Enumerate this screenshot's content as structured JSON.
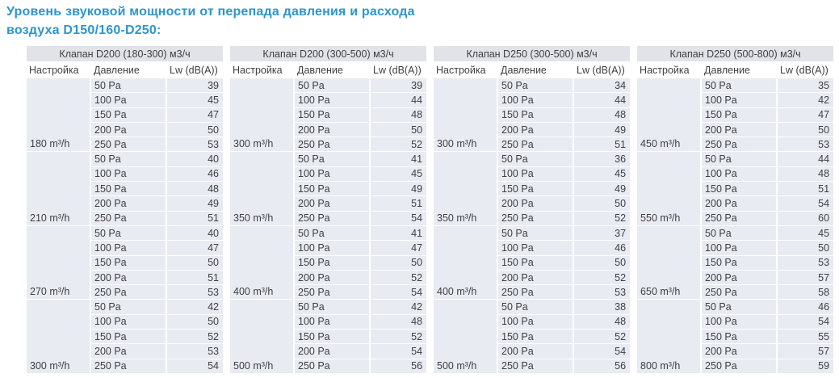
{
  "title": {
    "line1": "Уровень звуковой мощности от перепада давления и расхода",
    "line2": "воздуха D150/160-D250:"
  },
  "colors": {
    "title_accent": "#2e95cc",
    "table_header_bg": "#e2e3e9",
    "table_row_bg": "#e9ebf3",
    "text": "#3f3f3f",
    "separator": "#ffffff"
  },
  "tables": [
    {
      "header": "Клапан D200 (180-300) м3/ч",
      "columns": [
        "Настройка",
        "Давление",
        "Lw (dB(A))"
      ],
      "groups": [
        {
          "setting": "180 m³/h",
          "rows": [
            {
              "pressure": "50 Pa",
              "lw": 39
            },
            {
              "pressure": "100 Pa",
              "lw": 45
            },
            {
              "pressure": "150 Pa",
              "lw": 47
            },
            {
              "pressure": "200 Pa",
              "lw": 50
            },
            {
              "pressure": "250 Pa",
              "lw": 53
            }
          ]
        },
        {
          "setting": "210 m³/h",
          "rows": [
            {
              "pressure": "50 Pa",
              "lw": 40
            },
            {
              "pressure": "100 Pa",
              "lw": 46
            },
            {
              "pressure": "150 Pa",
              "lw": 48
            },
            {
              "pressure": "200 Pa",
              "lw": 49
            },
            {
              "pressure": "250 Pa",
              "lw": 51
            }
          ]
        },
        {
          "setting": "270 m³/h",
          "rows": [
            {
              "pressure": "50 Pa",
              "lw": 40
            },
            {
              "pressure": "100 Pa",
              "lw": 47
            },
            {
              "pressure": "150 Pa",
              "lw": 50
            },
            {
              "pressure": "200 Pa",
              "lw": 51
            },
            {
              "pressure": "250 Pa",
              "lw": 53
            }
          ]
        },
        {
          "setting": "300 m³/h",
          "rows": [
            {
              "pressure": "50 Pa",
              "lw": 42
            },
            {
              "pressure": "100 Pa",
              "lw": 50
            },
            {
              "pressure": "150 Pa",
              "lw": 52
            },
            {
              "pressure": "200 Pa",
              "lw": 53
            },
            {
              "pressure": "250 Pa",
              "lw": 54
            }
          ]
        }
      ]
    },
    {
      "header": "Клапан D200 (300-500) м3/ч",
      "columns": [
        "Настройка",
        "Давление",
        "Lw (dB(A))"
      ],
      "groups": [
        {
          "setting": "300 m³/h",
          "rows": [
            {
              "pressure": "50 Pa",
              "lw": 39
            },
            {
              "pressure": "100 Pa",
              "lw": 44
            },
            {
              "pressure": "150 Pa",
              "lw": 48
            },
            {
              "pressure": "200 Pa",
              "lw": 50
            },
            {
              "pressure": "250 Pa",
              "lw": 52
            }
          ]
        },
        {
          "setting": "350 m³/h",
          "rows": [
            {
              "pressure": "50 Pa",
              "lw": 41
            },
            {
              "pressure": "100 Pa",
              "lw": 45
            },
            {
              "pressure": "150 Pa",
              "lw": 49
            },
            {
              "pressure": "200 Pa",
              "lw": 51
            },
            {
              "pressure": "250 Pa",
              "lw": 54
            }
          ]
        },
        {
          "setting": "400 m³/h",
          "rows": [
            {
              "pressure": "50 Pa",
              "lw": 41
            },
            {
              "pressure": "100 Pa",
              "lw": 47
            },
            {
              "pressure": "150 Pa",
              "lw": 50
            },
            {
              "pressure": "200 Pa",
              "lw": 52
            },
            {
              "pressure": "250 Pa",
              "lw": 54
            }
          ]
        },
        {
          "setting": "500 m³/h",
          "rows": [
            {
              "pressure": "50 Pa",
              "lw": 42
            },
            {
              "pressure": "100 Pa",
              "lw": 48
            },
            {
              "pressure": "150 Pa",
              "lw": 52
            },
            {
              "pressure": "200 Pa",
              "lw": 54
            },
            {
              "pressure": "250 Pa",
              "lw": 56
            }
          ]
        }
      ]
    },
    {
      "header": "Клапан D250 (300-500) м3/ч",
      "columns": [
        "Настройка",
        "Давление",
        "Lw (dB(A))"
      ],
      "groups": [
        {
          "setting": "300 m³/h",
          "rows": [
            {
              "pressure": "50 Pa",
              "lw": 34
            },
            {
              "pressure": "100 Pa",
              "lw": 44
            },
            {
              "pressure": "150 Pa",
              "lw": 48
            },
            {
              "pressure": "200 Pa",
              "lw": 49
            },
            {
              "pressure": "250 Pa",
              "lw": 51
            }
          ]
        },
        {
          "setting": "350 m³/h",
          "rows": [
            {
              "pressure": "50 Pa",
              "lw": 36
            },
            {
              "pressure": "100 Pa",
              "lw": 45
            },
            {
              "pressure": "150 Pa",
              "lw": 49
            },
            {
              "pressure": "200 Pa",
              "lw": 50
            },
            {
              "pressure": "250 Pa",
              "lw": 52
            }
          ]
        },
        {
          "setting": "400 m³/h",
          "rows": [
            {
              "pressure": "50 Pa",
              "lw": 37
            },
            {
              "pressure": "100 Pa",
              "lw": 46
            },
            {
              "pressure": "150 Pa",
              "lw": 50
            },
            {
              "pressure": "200 Pa",
              "lw": 52
            },
            {
              "pressure": "250 Pa",
              "lw": 53
            }
          ]
        },
        {
          "setting": "500 m³/h",
          "rows": [
            {
              "pressure": "50 Pa",
              "lw": 38
            },
            {
              "pressure": "100 Pa",
              "lw": 48
            },
            {
              "pressure": "150 Pa",
              "lw": 52
            },
            {
              "pressure": "200 Pa",
              "lw": 54
            },
            {
              "pressure": "250 Pa",
              "lw": 56
            }
          ]
        }
      ]
    },
    {
      "header": "Клапан D250 (500-800) м3/ч",
      "columns": [
        "Настройка",
        "Давление",
        "Lw (dB(A))"
      ],
      "groups": [
        {
          "setting": "450 m³/h",
          "rows": [
            {
              "pressure": "50 Pa",
              "lw": 35
            },
            {
              "pressure": "100 Pa",
              "lw": 42
            },
            {
              "pressure": "150 Pa",
              "lw": 47
            },
            {
              "pressure": "200 Pa",
              "lw": 50
            },
            {
              "pressure": "250 Pa",
              "lw": 53
            }
          ]
        },
        {
          "setting": "550 m³/h",
          "rows": [
            {
              "pressure": "50 Pa",
              "lw": 44
            },
            {
              "pressure": "100 Pa",
              "lw": 48
            },
            {
              "pressure": "150 Pa",
              "lw": 51
            },
            {
              "pressure": "200 Pa",
              "lw": 54
            },
            {
              "pressure": "250 Pa",
              "lw": 60
            }
          ]
        },
        {
          "setting": "650 m³/h",
          "rows": [
            {
              "pressure": "50 Pa",
              "lw": 45
            },
            {
              "pressure": "100 Pa",
              "lw": 50
            },
            {
              "pressure": "150 Pa",
              "lw": 53
            },
            {
              "pressure": "200 Pa",
              "lw": 57
            },
            {
              "pressure": "250 Pa",
              "lw": 58
            }
          ]
        },
        {
          "setting": "800 m³/h",
          "rows": [
            {
              "pressure": "50 Pa",
              "lw": 46
            },
            {
              "pressure": "100 Pa",
              "lw": 54
            },
            {
              "pressure": "150 Pa",
              "lw": 55
            },
            {
              "pressure": "200 Pa",
              "lw": 57
            },
            {
              "pressure": "250 Pa",
              "lw": 59
            }
          ]
        }
      ]
    }
  ]
}
